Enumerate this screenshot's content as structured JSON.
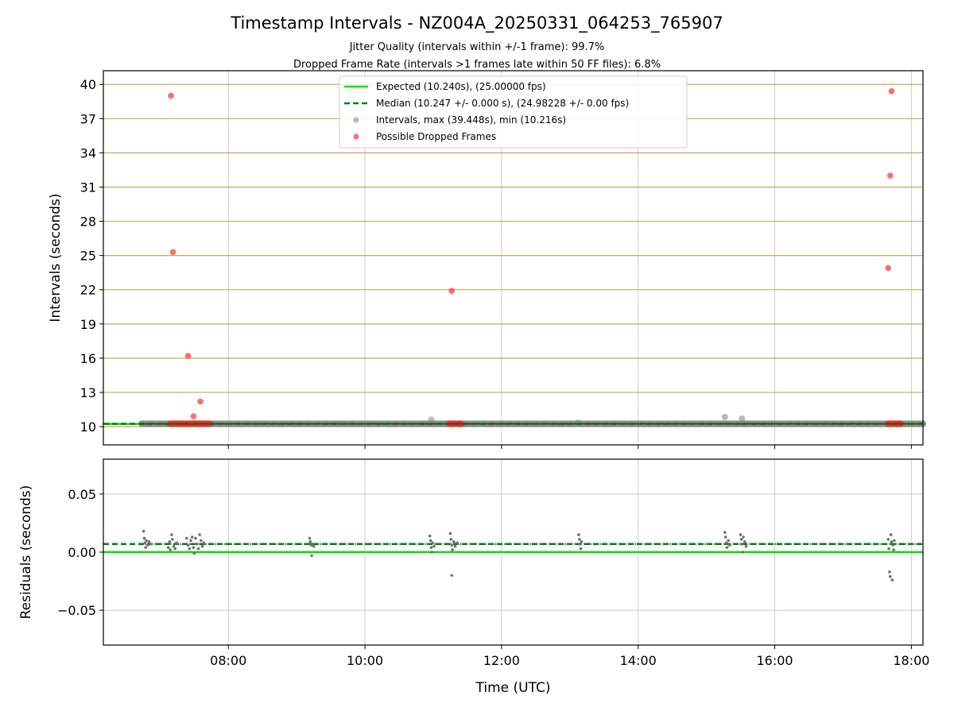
{
  "title": "Timestamp Intervals - NZ004A_20250331_064253_765907",
  "subtitle_line1": "Jitter Quality (intervals within +/-1 frame): 99.7%",
  "subtitle_line2": "Dropped Frame Rate (intervals >1 frames late within 50 FF files): 6.8%",
  "colors": {
    "expected": "#00e000",
    "median": "#008000",
    "intervals": "#808080",
    "dropped": "#ff2020",
    "hgrid": "#c8a850",
    "vgrid": "#cccccc"
  },
  "chart_data": [
    {
      "type": "scatter",
      "name": "intervals",
      "xlabel": "",
      "ylabel": "Intervals (seconds)",
      "x_unit": "hours UTC",
      "xlim": [
        6.17,
        18.17
      ],
      "ylim": [
        8.4,
        41.2
      ],
      "yticks": [
        10,
        13,
        16,
        19,
        22,
        25,
        28,
        31,
        34,
        37,
        40
      ],
      "ytick_labels": [
        "10",
        "13",
        "16",
        "19",
        "22",
        "25",
        "28",
        "31",
        "34",
        "37",
        "40"
      ],
      "grid": true,
      "legend_position": "upper center",
      "legend": [
        "Expected (10.240s), (25.00000 fps)",
        "Median (10.247 +/- 0.000 s), (24.98228 +/- 0.00 fps)",
        "Intervals, max (39.448s), min (10.216s)",
        "Possible Dropped Frames"
      ],
      "expected_value": 10.24,
      "median_value": 10.247,
      "interval_band": {
        "x_start": 6.73,
        "x_end": 18.17,
        "y": 10.25
      },
      "interval_outliers": [
        {
          "x": 10.97,
          "y": 10.6
        },
        {
          "x": 13.12,
          "y": 10.35
        },
        {
          "x": 15.27,
          "y": 10.85
        },
        {
          "x": 15.52,
          "y": 10.7
        }
      ],
      "dropped_frames": [
        {
          "x": 7.16,
          "y": 39.0
        },
        {
          "x": 7.19,
          "y": 25.3
        },
        {
          "x": 7.41,
          "y": 16.2
        },
        {
          "x": 7.49,
          "y": 10.9
        },
        {
          "x": 7.59,
          "y": 12.2
        },
        {
          "x": 11.27,
          "y": 21.9
        },
        {
          "x": 17.66,
          "y": 23.9
        },
        {
          "x": 17.69,
          "y": 32.0
        },
        {
          "x": 17.71,
          "y": 39.4
        }
      ],
      "dropped_baseline_segments": [
        {
          "x_start": 7.15,
          "x_end": 7.35,
          "y": 10.25
        },
        {
          "x_start": 7.39,
          "x_end": 7.73,
          "y": 10.25
        },
        {
          "x_start": 11.23,
          "x_end": 11.41,
          "y": 10.25
        },
        {
          "x_start": 17.66,
          "x_end": 17.84,
          "y": 10.25
        }
      ]
    },
    {
      "type": "scatter",
      "name": "residuals",
      "xlabel": "Time (UTC)",
      "ylabel": "Residuals (seconds)",
      "x_unit": "hours UTC",
      "xlim": [
        6.17,
        18.17
      ],
      "ylim": [
        -0.08,
        0.08
      ],
      "yticks": [
        0.05,
        0.0,
        -0.05
      ],
      "ytick_labels": [
        "0.05",
        "0.00",
        "−0.05"
      ],
      "xticks": [
        8,
        10,
        12,
        14,
        16,
        18
      ],
      "xtick_labels": [
        "08:00",
        "10:00",
        "12:00",
        "14:00",
        "16:00",
        "18:00"
      ],
      "grid": true,
      "expected_value": 0.0,
      "median_value": 0.007,
      "baseline": {
        "x_start": 6.73,
        "x_end": 18.17,
        "y": 0.007
      },
      "points": [
        {
          "x": 6.76,
          "y": 0.018
        },
        {
          "x": 6.77,
          "y": 0.012
        },
        {
          "x": 6.78,
          "y": 0.008
        },
        {
          "x": 6.79,
          "y": 0.004
        },
        {
          "x": 6.8,
          "y": 0.01
        },
        {
          "x": 6.82,
          "y": 0.006
        },
        {
          "x": 6.84,
          "y": 0.009
        },
        {
          "x": 6.86,
          "y": 0.007
        },
        {
          "x": 7.12,
          "y": 0.004
        },
        {
          "x": 7.14,
          "y": 0.009
        },
        {
          "x": 7.15,
          "y": 0.002
        },
        {
          "x": 7.17,
          "y": 0.015
        },
        {
          "x": 7.18,
          "y": 0.011
        },
        {
          "x": 7.2,
          "y": 0.005
        },
        {
          "x": 7.22,
          "y": 0.003
        },
        {
          "x": 7.24,
          "y": 0.008
        },
        {
          "x": 7.39,
          "y": 0.012
        },
        {
          "x": 7.41,
          "y": 0.006
        },
        {
          "x": 7.43,
          "y": 0.003
        },
        {
          "x": 7.45,
          "y": 0.01
        },
        {
          "x": 7.47,
          "y": 0.013
        },
        {
          "x": 7.49,
          "y": 0.004
        },
        {
          "x": 7.5,
          "y": -0.001
        },
        {
          "x": 7.52,
          "y": 0.012
        },
        {
          "x": 7.54,
          "y": 0.007
        },
        {
          "x": 7.56,
          "y": 0.003
        },
        {
          "x": 7.58,
          "y": 0.015
        },
        {
          "x": 7.6,
          "y": 0.01
        },
        {
          "x": 7.62,
          "y": 0.005
        },
        {
          "x": 7.64,
          "y": 0.008
        },
        {
          "x": 9.19,
          "y": 0.012
        },
        {
          "x": 9.2,
          "y": 0.009
        },
        {
          "x": 9.21,
          "y": 0.006
        },
        {
          "x": 9.22,
          "y": -0.003
        },
        {
          "x": 9.23,
          "y": 0.007
        },
        {
          "x": 9.25,
          "y": 0.005
        },
        {
          "x": 10.95,
          "y": 0.014
        },
        {
          "x": 10.96,
          "y": 0.01
        },
        {
          "x": 10.97,
          "y": 0.004
        },
        {
          "x": 10.98,
          "y": 0.0
        },
        {
          "x": 10.99,
          "y": 0.008
        },
        {
          "x": 11.01,
          "y": 0.005
        },
        {
          "x": 11.25,
          "y": 0.016
        },
        {
          "x": 11.26,
          "y": 0.011
        },
        {
          "x": 11.27,
          "y": 0.006
        },
        {
          "x": 11.28,
          "y": 0.002
        },
        {
          "x": 11.27,
          "y": -0.02
        },
        {
          "x": 11.3,
          "y": 0.009
        },
        {
          "x": 11.32,
          "y": 0.005
        },
        {
          "x": 11.35,
          "y": 0.008
        },
        {
          "x": 13.13,
          "y": 0.015
        },
        {
          "x": 13.14,
          "y": 0.011
        },
        {
          "x": 13.15,
          "y": 0.007
        },
        {
          "x": 13.16,
          "y": 0.003
        },
        {
          "x": 13.17,
          "y": 0.009
        },
        {
          "x": 15.27,
          "y": 0.017
        },
        {
          "x": 15.28,
          "y": 0.013
        },
        {
          "x": 15.29,
          "y": 0.008
        },
        {
          "x": 15.3,
          "y": 0.004
        },
        {
          "x": 15.32,
          "y": 0.01
        },
        {
          "x": 15.34,
          "y": 0.006
        },
        {
          "x": 15.5,
          "y": 0.015
        },
        {
          "x": 15.51,
          "y": 0.011
        },
        {
          "x": 15.52,
          "y": 0.007
        },
        {
          "x": 15.53,
          "y": 0.0
        },
        {
          "x": 15.54,
          "y": 0.013
        },
        {
          "x": 15.56,
          "y": 0.009
        },
        {
          "x": 15.58,
          "y": 0.005
        },
        {
          "x": 17.66,
          "y": 0.011
        },
        {
          "x": 17.67,
          "y": 0.003
        },
        {
          "x": 17.68,
          "y": -0.017
        },
        {
          "x": 17.69,
          "y": -0.021
        },
        {
          "x": 17.7,
          "y": 0.015
        },
        {
          "x": 17.71,
          "y": 0.009
        },
        {
          "x": 17.72,
          "y": -0.024
        },
        {
          "x": 17.73,
          "y": 0.006
        },
        {
          "x": 17.74,
          "y": 0.002
        },
        {
          "x": 17.75,
          "y": 0.01
        }
      ]
    }
  ]
}
